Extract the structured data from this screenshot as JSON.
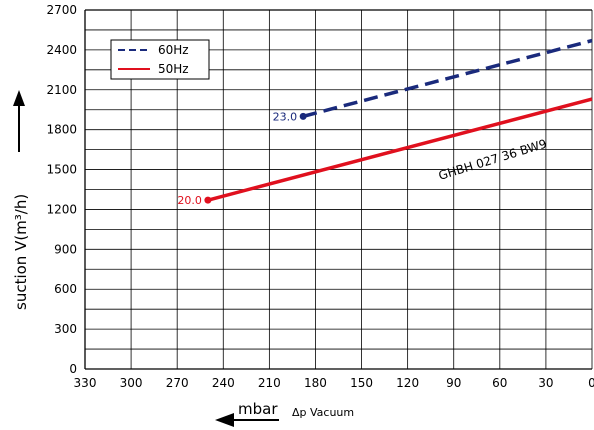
{
  "chart_data": {
    "type": "line",
    "title": "",
    "xlabel": "mbar",
    "xlabel_secondary": "Δp  Vacuum",
    "ylabel": "suction V(m³/h)",
    "xlim": [
      330,
      0
    ],
    "ylim": [
      0,
      2700
    ],
    "x_ticks": [
      "330",
      "300",
      "270",
      "240",
      "210",
      "180",
      "150",
      "120",
      "90",
      "60",
      "30",
      "0"
    ],
    "y_ticks": [
      "0",
      "300",
      "600",
      "900",
      "1200",
      "1500",
      "1800",
      "2100",
      "2400",
      "2700"
    ],
    "grid": true,
    "legend_position": "top-left",
    "series": [
      {
        "name": "60Hz",
        "style": "dashed",
        "color": "#1a2a7c",
        "x": [
          188,
          0
        ],
        "y": [
          1900,
          2470
        ],
        "start_label": "23.0"
      },
      {
        "name": "50Hz",
        "style": "solid",
        "color": "#e0101e",
        "x": [
          250,
          0
        ],
        "y": [
          1270,
          2030
        ],
        "start_label": "20.0"
      }
    ],
    "annotations": [
      {
        "text": "GHBH  027 36 BW9"
      }
    ]
  }
}
